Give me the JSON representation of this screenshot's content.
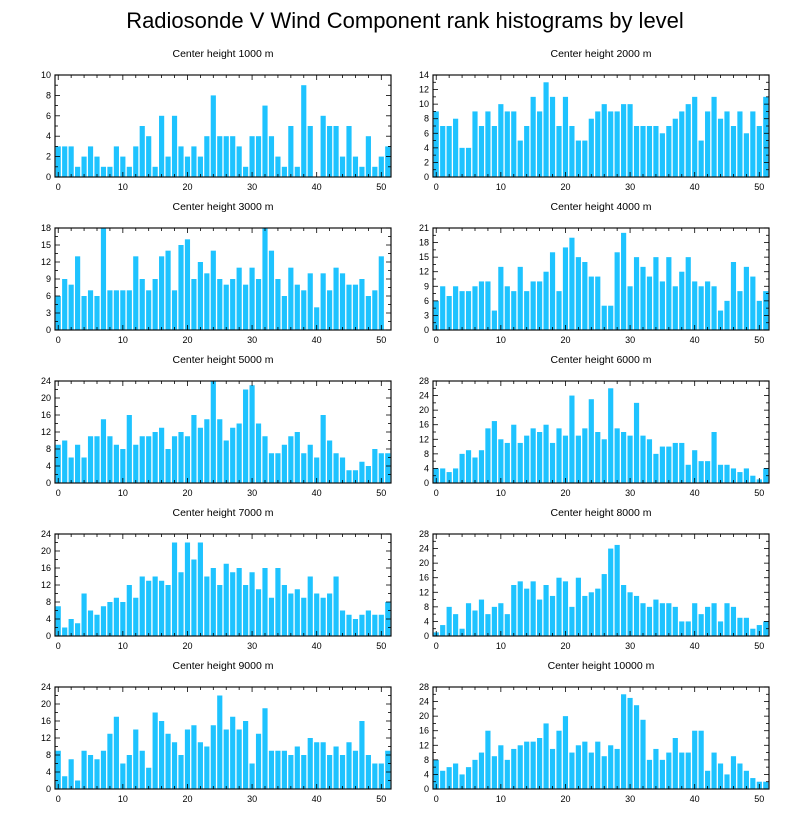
{
  "title": "Radiosonde V Wind Component rank histograms by level",
  "bar_color": "#1ec3ff",
  "bar_stroke": "#111111",
  "chart_data": [
    {
      "type": "bar",
      "title": "Center height 1000 m",
      "x": [
        0,
        1,
        2,
        3,
        4,
        5,
        6,
        7,
        8,
        9,
        10,
        11,
        12,
        13,
        14,
        15,
        16,
        17,
        18,
        19,
        20,
        21,
        22,
        23,
        24,
        25,
        26,
        27,
        28,
        29,
        30,
        31,
        32,
        33,
        34,
        35,
        36,
        37,
        38,
        39,
        40,
        41,
        42,
        43,
        44,
        45,
        46,
        47,
        48,
        49,
        50,
        51
      ],
      "values": [
        3,
        3,
        3,
        1,
        2,
        3,
        2,
        1,
        1,
        3,
        2,
        1,
        3,
        5,
        4,
        1,
        6,
        2,
        6,
        3,
        2,
        3,
        2,
        4,
        8,
        4,
        4,
        4,
        3,
        1,
        4,
        4,
        7,
        4,
        2,
        1,
        5,
        1,
        9,
        5,
        0,
        6,
        5,
        5,
        2,
        5,
        2,
        1,
        4,
        1,
        2,
        3
      ],
      "xlim": [
        -0.5,
        51.5
      ],
      "xticks": [
        0,
        10,
        20,
        30,
        40,
        50
      ],
      "ylim": [
        0,
        10
      ],
      "yticks": [
        0,
        2,
        4,
        6,
        8,
        10
      ],
      "ytick_labels": [
        "0",
        "2",
        "4",
        "6",
        "8",
        "10"
      ]
    },
    {
      "type": "bar",
      "title": "Center height 2000 m",
      "x": [
        0,
        1,
        2,
        3,
        4,
        5,
        6,
        7,
        8,
        9,
        10,
        11,
        12,
        13,
        14,
        15,
        16,
        17,
        18,
        19,
        20,
        21,
        22,
        23,
        24,
        25,
        26,
        27,
        28,
        29,
        30,
        31,
        32,
        33,
        34,
        35,
        36,
        37,
        38,
        39,
        40,
        41,
        42,
        43,
        44,
        45,
        46,
        47,
        48,
        49,
        50,
        51
      ],
      "values": [
        9,
        7,
        7,
        8,
        4,
        4,
        9,
        7,
        9,
        7,
        10,
        9,
        9,
        5,
        7,
        11,
        9,
        13,
        11,
        7,
        11,
        7,
        5,
        5,
        8,
        9,
        10,
        9,
        9,
        10,
        10,
        7,
        7,
        7,
        7,
        6,
        7,
        8,
        9,
        10,
        11,
        5,
        9,
        11,
        8,
        9,
        7,
        9,
        6,
        9,
        7,
        11
      ],
      "xlim": [
        -0.5,
        51.5
      ],
      "xticks": [
        0,
        10,
        20,
        30,
        40,
        50
      ],
      "ylim": [
        0,
        14
      ],
      "yticks": [
        0,
        2,
        4,
        6,
        8,
        10,
        12,
        14
      ],
      "ytick_labels": [
        "0",
        "2",
        "4",
        "6",
        "8",
        "10",
        "12",
        "14"
      ]
    },
    {
      "type": "bar",
      "title": "Center height 3000 m",
      "x": [
        0,
        1,
        2,
        3,
        4,
        5,
        6,
        7,
        8,
        9,
        10,
        11,
        12,
        13,
        14,
        15,
        16,
        17,
        18,
        19,
        20,
        21,
        22,
        23,
        24,
        25,
        26,
        27,
        28,
        29,
        30,
        31,
        32,
        33,
        34,
        35,
        36,
        37,
        38,
        39,
        40,
        41,
        42,
        43,
        44,
        45,
        46,
        47,
        48,
        49,
        50,
        51
      ],
      "values": [
        6,
        9,
        8,
        13,
        6,
        7,
        6,
        18,
        7,
        7,
        7,
        7,
        13,
        9,
        7,
        9,
        13,
        14,
        7,
        15,
        16,
        9,
        12,
        10,
        14,
        9,
        8,
        9,
        11,
        8,
        11,
        9,
        18,
        14,
        9,
        6,
        11,
        8,
        7,
        10,
        4,
        10,
        7,
        11,
        10,
        8,
        8,
        9,
        6,
        7,
        13,
        0
      ],
      "xlim": [
        -0.5,
        51.5
      ],
      "xticks": [
        0,
        10,
        20,
        30,
        40,
        50
      ],
      "ylim": [
        0,
        18
      ],
      "yticks": [
        0,
        3,
        6,
        9,
        12,
        15,
        18
      ],
      "ytick_labels": [
        "0",
        "3",
        "6",
        "9",
        "12",
        "15",
        "18"
      ]
    },
    {
      "type": "bar",
      "title": "Center height 4000 m",
      "x": [
        0,
        1,
        2,
        3,
        4,
        5,
        6,
        7,
        8,
        9,
        10,
        11,
        12,
        13,
        14,
        15,
        16,
        17,
        18,
        19,
        20,
        21,
        22,
        23,
        24,
        25,
        26,
        27,
        28,
        29,
        30,
        31,
        32,
        33,
        34,
        35,
        36,
        37,
        38,
        39,
        40,
        41,
        42,
        43,
        44,
        45,
        46,
        47,
        48,
        49,
        50,
        51
      ],
      "values": [
        6,
        9,
        7,
        9,
        8,
        8,
        9,
        10,
        10,
        4,
        13,
        9,
        8,
        13,
        8,
        10,
        10,
        12,
        16,
        8,
        17,
        19,
        15,
        14,
        11,
        11,
        5,
        5,
        16,
        20,
        9,
        15,
        13,
        11,
        15,
        10,
        15,
        9,
        12,
        15,
        10,
        9,
        10,
        9,
        4,
        6,
        14,
        8,
        13,
        11,
        6,
        8
      ],
      "xlim": [
        -0.5,
        51.5
      ],
      "xticks": [
        0,
        10,
        20,
        30,
        40,
        50
      ],
      "ylim": [
        0,
        21
      ],
      "yticks": [
        0,
        3,
        6,
        9,
        12,
        15,
        18,
        21
      ],
      "ytick_labels": [
        "0",
        "3",
        "6",
        "9",
        "12",
        "15",
        "18",
        "21"
      ]
    },
    {
      "type": "bar",
      "title": "Center height 5000 m",
      "x": [
        0,
        1,
        2,
        3,
        4,
        5,
        6,
        7,
        8,
        9,
        10,
        11,
        12,
        13,
        14,
        15,
        16,
        17,
        18,
        19,
        20,
        21,
        22,
        23,
        24,
        25,
        26,
        27,
        28,
        29,
        30,
        31,
        32,
        33,
        34,
        35,
        36,
        37,
        38,
        39,
        40,
        41,
        42,
        43,
        44,
        45,
        46,
        47,
        48,
        49,
        50,
        51
      ],
      "values": [
        9,
        10,
        6,
        9,
        6,
        11,
        11,
        15,
        11,
        9,
        8,
        16,
        9,
        11,
        11,
        12,
        13,
        8,
        11,
        12,
        11,
        16,
        13,
        15,
        24,
        15,
        10,
        13,
        14,
        22,
        23,
        14,
        11,
        7,
        7,
        9,
        11,
        12,
        7,
        9,
        6,
        16,
        10,
        7,
        6,
        3,
        3,
        5,
        4,
        8,
        7,
        7
      ],
      "xlim": [
        -0.5,
        51.5
      ],
      "xticks": [
        0,
        10,
        20,
        30,
        40,
        50
      ],
      "ylim": [
        0,
        24
      ],
      "yticks": [
        0,
        4,
        8,
        12,
        16,
        20,
        24
      ],
      "ytick_labels": [
        "0",
        "4",
        "8",
        "12",
        "16",
        "20",
        "24"
      ]
    },
    {
      "type": "bar",
      "title": "Center height 6000 m",
      "x": [
        0,
        1,
        2,
        3,
        4,
        5,
        6,
        7,
        8,
        9,
        10,
        11,
        12,
        13,
        14,
        15,
        16,
        17,
        18,
        19,
        20,
        21,
        22,
        23,
        24,
        25,
        26,
        27,
        28,
        29,
        30,
        31,
        32,
        33,
        34,
        35,
        36,
        37,
        38,
        39,
        40,
        41,
        42,
        43,
        44,
        45,
        46,
        47,
        48,
        49,
        50,
        51
      ],
      "values": [
        4,
        4,
        3,
        4,
        8,
        9,
        7,
        9,
        15,
        17,
        12,
        11,
        16,
        11,
        13,
        15,
        14,
        16,
        11,
        15,
        13,
        24,
        13,
        15,
        23,
        14,
        12,
        26,
        15,
        14,
        13,
        22,
        13,
        12,
        8,
        10,
        10,
        11,
        11,
        5,
        9,
        6,
        6,
        14,
        5,
        5,
        4,
        3,
        4,
        2,
        1,
        4
      ],
      "xlim": [
        -0.5,
        51.5
      ],
      "xticks": [
        0,
        10,
        20,
        30,
        40,
        50
      ],
      "ylim": [
        0,
        28
      ],
      "yticks": [
        0,
        4,
        8,
        12,
        16,
        20,
        24,
        28
      ],
      "ytick_labels": [
        "0",
        "4",
        "8",
        "12",
        "16",
        "20",
        "24",
        "28"
      ]
    },
    {
      "type": "bar",
      "title": "Center height 7000 m",
      "x": [
        0,
        1,
        2,
        3,
        4,
        5,
        6,
        7,
        8,
        9,
        10,
        11,
        12,
        13,
        14,
        15,
        16,
        17,
        18,
        19,
        20,
        21,
        22,
        23,
        24,
        25,
        26,
        27,
        28,
        29,
        30,
        31,
        32,
        33,
        34,
        35,
        36,
        37,
        38,
        39,
        40,
        41,
        42,
        43,
        44,
        45,
        46,
        47,
        48,
        49,
        50,
        51
      ],
      "values": [
        7,
        2,
        4,
        3,
        10,
        6,
        5,
        7,
        8,
        9,
        8,
        12,
        9,
        14,
        13,
        14,
        13,
        12,
        22,
        15,
        22,
        18,
        22,
        14,
        16,
        12,
        17,
        15,
        16,
        12,
        15,
        11,
        16,
        9,
        16,
        12,
        10,
        11,
        9,
        14,
        10,
        9,
        10,
        14,
        6,
        5,
        4,
        5,
        6,
        5,
        5,
        8
      ],
      "xlim": [
        -0.5,
        51.5
      ],
      "xticks": [
        0,
        10,
        20,
        30,
        40,
        50
      ],
      "ylim": [
        0,
        24
      ],
      "yticks": [
        0,
        4,
        8,
        12,
        16,
        20,
        24
      ],
      "ytick_labels": [
        "0",
        "4",
        "8",
        "12",
        "16",
        "20",
        "24"
      ]
    },
    {
      "type": "bar",
      "title": "Center height 8000 m",
      "x": [
        0,
        1,
        2,
        3,
        4,
        5,
        6,
        7,
        8,
        9,
        10,
        11,
        12,
        13,
        14,
        15,
        16,
        17,
        18,
        19,
        20,
        21,
        22,
        23,
        24,
        25,
        26,
        27,
        28,
        29,
        30,
        31,
        32,
        33,
        34,
        35,
        36,
        37,
        38,
        39,
        40,
        41,
        42,
        43,
        44,
        45,
        46,
        47,
        48,
        49,
        50,
        51
      ],
      "values": [
        1,
        3,
        8,
        6,
        2,
        9,
        7,
        10,
        6,
        8,
        9,
        6,
        14,
        15,
        13,
        15,
        10,
        14,
        11,
        16,
        15,
        8,
        16,
        11,
        12,
        13,
        17,
        24,
        25,
        14,
        12,
        11,
        9,
        8,
        10,
        9,
        9,
        8,
        4,
        4,
        9,
        6,
        8,
        9,
        4,
        9,
        8,
        5,
        5,
        2,
        3,
        4
      ],
      "xlim": [
        -0.5,
        51.5
      ],
      "xticks": [
        0,
        10,
        20,
        30,
        40,
        50
      ],
      "ylim": [
        0,
        28
      ],
      "yticks": [
        0,
        4,
        8,
        12,
        16,
        20,
        24,
        28
      ],
      "ytick_labels": [
        "0",
        "4",
        "8",
        "12",
        "16",
        "20",
        "24",
        "28"
      ]
    },
    {
      "type": "bar",
      "title": "Center height 9000 m",
      "x": [
        0,
        1,
        2,
        3,
        4,
        5,
        6,
        7,
        8,
        9,
        10,
        11,
        12,
        13,
        14,
        15,
        16,
        17,
        18,
        19,
        20,
        21,
        22,
        23,
        24,
        25,
        26,
        27,
        28,
        29,
        30,
        31,
        32,
        33,
        34,
        35,
        36,
        37,
        38,
        39,
        40,
        41,
        42,
        43,
        44,
        45,
        46,
        47,
        48,
        49,
        50,
        51
      ],
      "values": [
        9,
        3,
        7,
        2,
        9,
        8,
        7,
        9,
        13,
        17,
        6,
        8,
        14,
        9,
        5,
        18,
        16,
        13,
        11,
        8,
        14,
        15,
        11,
        10,
        15,
        22,
        14,
        17,
        14,
        16,
        6,
        13,
        19,
        9,
        9,
        9,
        8,
        10,
        8,
        12,
        11,
        11,
        8,
        10,
        8,
        11,
        9,
        16,
        8,
        6,
        6,
        9
      ],
      "xlim": [
        -0.5,
        51.5
      ],
      "xticks": [
        0,
        10,
        20,
        30,
        40,
        50
      ],
      "ylim": [
        0,
        24
      ],
      "yticks": [
        0,
        4,
        8,
        12,
        16,
        20,
        24
      ],
      "ytick_labels": [
        "0",
        "4",
        "8",
        "12",
        "16",
        "20",
        "24"
      ]
    },
    {
      "type": "bar",
      "title": "Center height 10000 m",
      "x": [
        0,
        1,
        2,
        3,
        4,
        5,
        6,
        7,
        8,
        9,
        10,
        11,
        12,
        13,
        14,
        15,
        16,
        17,
        18,
        19,
        20,
        21,
        22,
        23,
        24,
        25,
        26,
        27,
        28,
        29,
        30,
        31,
        32,
        33,
        34,
        35,
        36,
        37,
        38,
        39,
        40,
        41,
        42,
        43,
        44,
        45,
        46,
        47,
        48,
        49,
        50,
        51
      ],
      "values": [
        8,
        5,
        6,
        7,
        4,
        6,
        8,
        10,
        16,
        9,
        12,
        8,
        11,
        12,
        13,
        13,
        14,
        18,
        11,
        16,
        20,
        10,
        12,
        13,
        10,
        13,
        9,
        12,
        11,
        26,
        25,
        23,
        19,
        8,
        11,
        8,
        10,
        14,
        10,
        10,
        16,
        16,
        5,
        10,
        7,
        4,
        9,
        7,
        5,
        3,
        2,
        2
      ],
      "xlim": [
        -0.5,
        51.5
      ],
      "xticks": [
        0,
        10,
        20,
        30,
        40,
        50
      ],
      "ylim": [
        0,
        28
      ],
      "yticks": [
        0,
        4,
        8,
        12,
        16,
        20,
        24,
        28
      ],
      "ytick_labels": [
        "0",
        "4",
        "8",
        "12",
        "16",
        "20",
        "24",
        "28"
      ]
    }
  ]
}
